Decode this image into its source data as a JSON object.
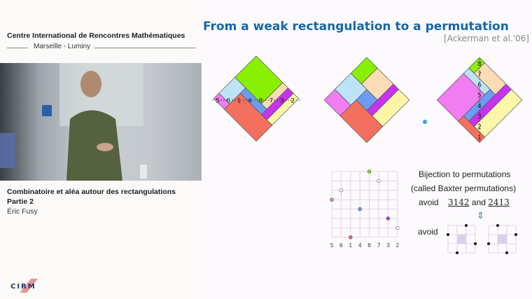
{
  "sidebar": {
    "organization": "Centre International de Rencontres Mathématiques",
    "location": "Marseille - Luminy",
    "talk_title": "Combinatoire et aléa autour des rectangulations",
    "part": "Partie 2",
    "speaker": "Éric Fusy",
    "logo_text": "CIRM"
  },
  "slide": {
    "title": "From a weak rectangulation to a permutation",
    "citation": "[Ackerman et al.'06]",
    "colors": {
      "title": "#1866a6",
      "green": "#88f000",
      "orange": "#fbdcb4",
      "purple": "#c832f0",
      "yellow": "#fdf6a8",
      "blue": "#6b9cf2",
      "lightblue": "#bde4f6",
      "pink": "#f27cf2",
      "red": "#f4705e"
    },
    "diagram1_labels": [
      "5",
      "6",
      "1",
      "4",
      "8",
      "7",
      "3",
      "2"
    ],
    "diagram3_labels": [
      "8",
      "7",
      "6",
      "5",
      "4",
      "3",
      "2",
      "1"
    ],
    "permutation": [
      5,
      6,
      1,
      4,
      8,
      7,
      3,
      2
    ],
    "bijection_line1": "Bijection to permutations",
    "bijection_line2": "(called Baxter permutations)",
    "avoid_label": "avoid",
    "pattern1": "3142",
    "and_label": "and",
    "pattern2": "2413",
    "equiv_symbol": "⇕",
    "avoid_label2": "avoid"
  }
}
